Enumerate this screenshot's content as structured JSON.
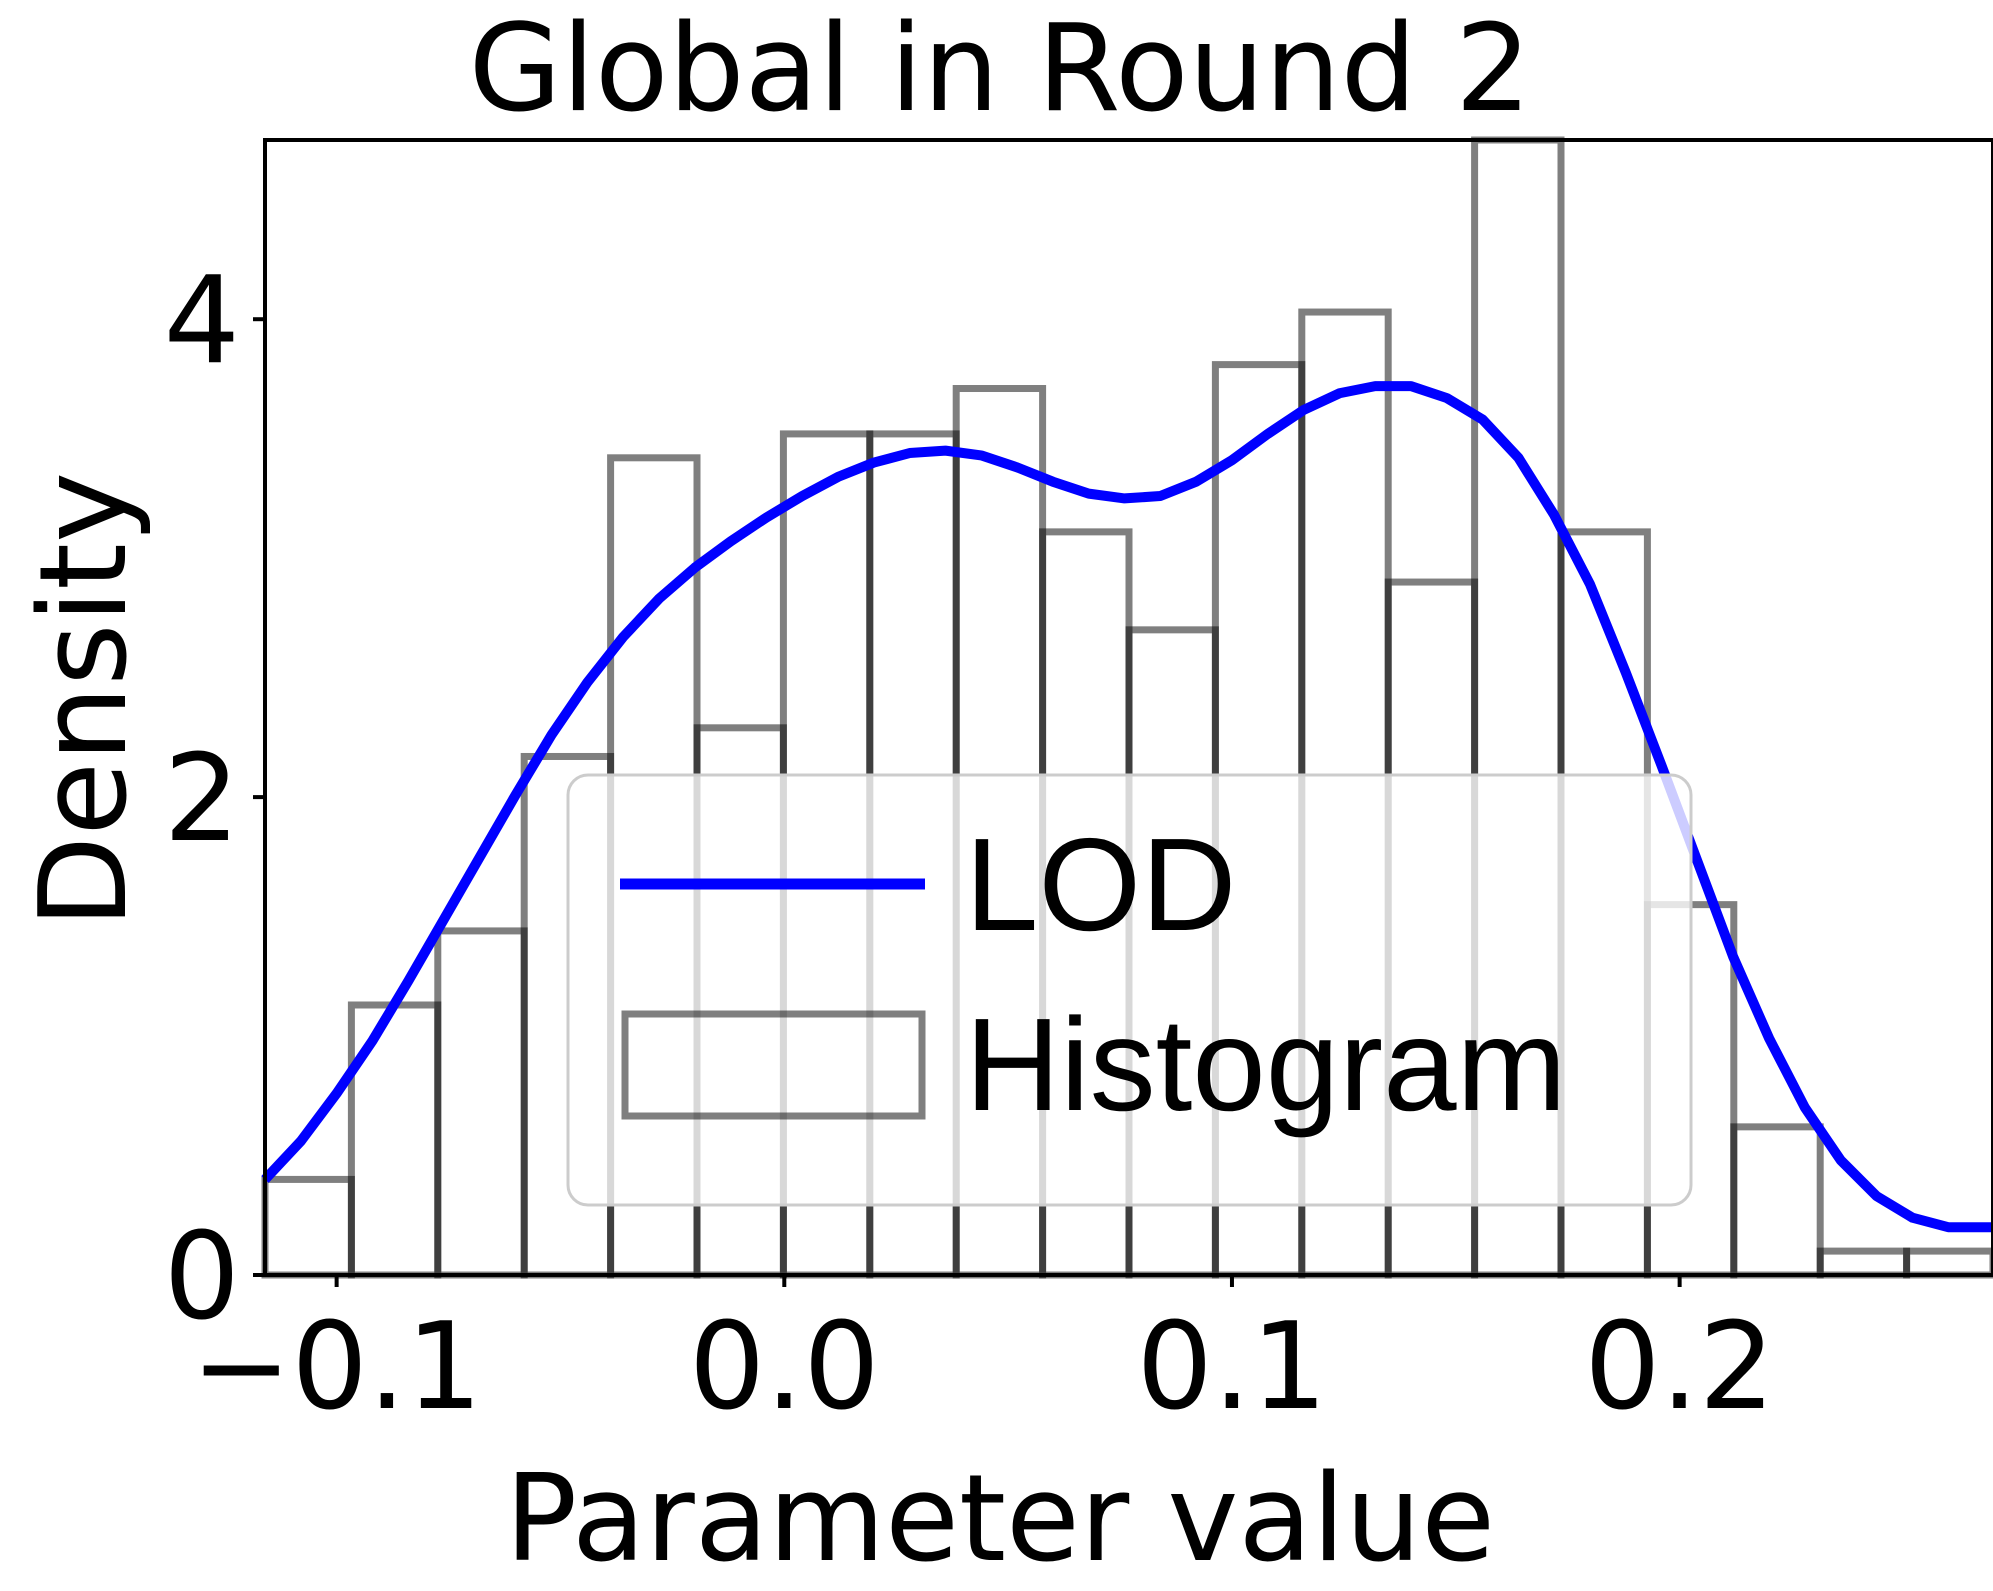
{
  "chart_data": {
    "type": "bar",
    "title": "Global in Round 2",
    "xlabel": "Parameter value",
    "ylabel": "Density",
    "xlim": [
      -0.116,
      0.27
    ],
    "ylim": [
      0,
      4.75
    ],
    "xticks": [
      -0.1,
      0.0,
      0.1,
      0.2
    ],
    "xtick_labels": [
      "−0.1",
      "0.0",
      "0.1",
      "0.2"
    ],
    "yticks": [
      0,
      2,
      4
    ],
    "ytick_labels": [
      "0",
      "2",
      "4"
    ],
    "grid": false,
    "legend": {
      "placement": "center",
      "entries": [
        {
          "label": "LOD",
          "kind": "line",
          "color": "#0000ff"
        },
        {
          "label": "Histogram",
          "kind": "box",
          "color": "#808080"
        }
      ]
    },
    "histogram": {
      "name": "Histogram",
      "color": "#000000",
      "alpha": 0.5,
      "bin_edges": [
        -0.116,
        -0.0967,
        -0.0774,
        -0.0581,
        -0.0388,
        -0.0195,
        -0.0002,
        0.0191,
        0.0384,
        0.0577,
        0.077,
        0.0963,
        0.1156,
        0.1349,
        0.1542,
        0.1735,
        0.1928,
        0.2121,
        0.2314,
        0.2507,
        0.27
      ],
      "values": [
        0.4,
        1.13,
        1.44,
        2.17,
        3.42,
        2.29,
        3.52,
        3.52,
        3.71,
        3.11,
        2.7,
        3.81,
        4.03,
        2.9,
        4.75,
        3.11,
        1.55,
        0.62,
        0.1,
        0.1
      ]
    },
    "series": [
      {
        "name": "LOD",
        "color": "#0000ff",
        "x": [
          -0.116,
          -0.108,
          -0.1,
          -0.092,
          -0.084,
          -0.076,
          -0.068,
          -0.06,
          -0.052,
          -0.044,
          -0.036,
          -0.028,
          -0.02,
          -0.012,
          -0.004,
          0.004,
          0.012,
          0.02,
          0.028,
          0.036,
          0.044,
          0.052,
          0.06,
          0.068,
          0.076,
          0.084,
          0.092,
          0.1,
          0.108,
          0.116,
          0.124,
          0.132,
          0.14,
          0.148,
          0.156,
          0.164,
          0.172,
          0.18,
          0.188,
          0.196,
          0.204,
          0.212,
          0.22,
          0.228,
          0.236,
          0.244,
          0.252,
          0.26,
          0.27
        ],
        "y": [
          0.4,
          0.56,
          0.76,
          0.98,
          1.23,
          1.49,
          1.75,
          2.01,
          2.26,
          2.48,
          2.67,
          2.83,
          2.96,
          3.07,
          3.17,
          3.26,
          3.34,
          3.4,
          3.44,
          3.45,
          3.43,
          3.38,
          3.32,
          3.27,
          3.25,
          3.26,
          3.32,
          3.41,
          3.52,
          3.62,
          3.69,
          3.72,
          3.72,
          3.67,
          3.58,
          3.42,
          3.18,
          2.89,
          2.52,
          2.13,
          1.73,
          1.33,
          0.99,
          0.7,
          0.48,
          0.33,
          0.24,
          0.2,
          0.2
        ]
      }
    ]
  }
}
